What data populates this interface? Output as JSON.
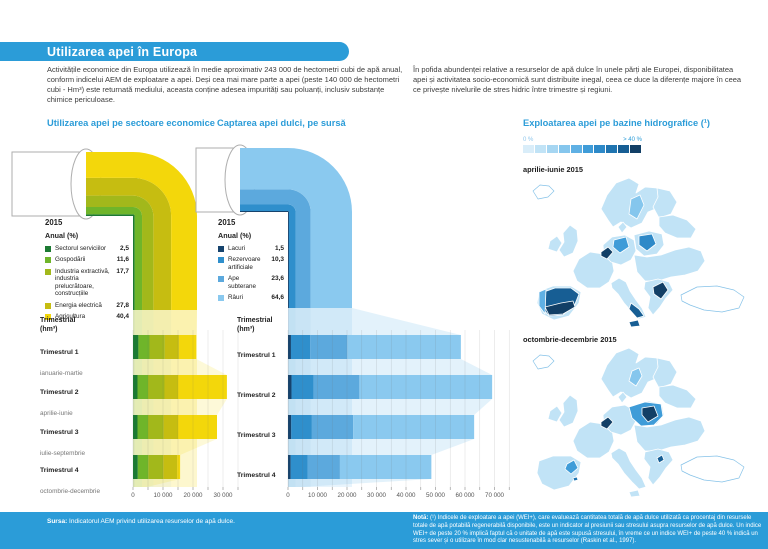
{
  "page": {
    "title": "Utilizarea apei în Europa",
    "intro_left": "Activitățile economice din Europa utilizează în medie aproximativ 243 000 de hectometri cubi de apă anual, conform indicelui AEM de exploatare a apei. Deși cea mai mare parte a apei (peste 140 000 de hectometri cubi - Hm³) este returnată mediului, aceasta conține adesea impurități sau poluanți, inclusiv substanțe chimice periculoase.",
    "intro_right": "În pofida abundenței relative a resurselor de apă dulce în unele părți ale Europei, disponibilitatea apei și activitatea socio-economică sunt distribuite inegal, ceea ce duce la diferențe majore în ceea ce privește nivelurile de stres hidric între trimestre și regiuni."
  },
  "chart_data": [
    {
      "id": "water-use-by-sector",
      "type": "flow-stacked-bar",
      "title": "Utilizarea apei pe sectoare economice",
      "year_label": "2015",
      "annual_label": "Anual (%)",
      "quarterly_label": "Trimestrial",
      "quarterly_unit": "(hm³)",
      "series": [
        {
          "name": "Sectorul serviciilor",
          "annual_pct": "2,5",
          "color": "#1c7a33"
        },
        {
          "name": "Gospodării",
          "annual_pct": "11,6",
          "color": "#6fb52a"
        },
        {
          "name": "Industria extractivă, industria prelucrătoare, construcțiile",
          "annual_pct": "17,7",
          "color": "#a2b81b"
        },
        {
          "name": "Energia electrică",
          "annual_pct": "27,8",
          "color": "#c6bd11"
        },
        {
          "name": "Agricultura",
          "annual_pct": "40,4",
          "color": "#f3d70b"
        }
      ],
      "quarters": [
        {
          "label": "Trimestrul 1",
          "sub": "ianuarie-martie",
          "values": [
            1800,
            3700,
            5100,
            4700,
            5800
          ]
        },
        {
          "label": "Trimestrul 2",
          "sub": "aprilie-iunie",
          "values": [
            1500,
            3500,
            5500,
            4500,
            16300
          ]
        },
        {
          "label": "Trimestrul 3",
          "sub": "iulie-septembrie",
          "values": [
            1500,
            3500,
            5200,
            4800,
            13000
          ]
        },
        {
          "label": "Trimestrul 4",
          "sub": "octombrie-decembrie",
          "values": [
            1600,
            3500,
            5000,
            4600,
            1000
          ]
        }
      ],
      "axis": {
        "max": 35000,
        "minor_step": 5000,
        "label_step": 10000,
        "tick_labels": [
          "0",
          "10 000",
          "20 000",
          "30 000"
        ]
      }
    },
    {
      "id": "freshwater-abstraction-by-source",
      "type": "flow-stacked-bar",
      "title": "Captarea apei dulci, pe sursă",
      "year_label": "2015",
      "annual_label": "Anual (%)",
      "quarterly_label": "Trimestrial",
      "quarterly_unit": "(hm³)",
      "series": [
        {
          "name": "Lacuri",
          "annual_pct": "1,5",
          "color": "#16436d"
        },
        {
          "name": "Rezervoare artificiale",
          "annual_pct": "10,3",
          "color": "#2f8fcc"
        },
        {
          "name": "Ape subterane",
          "annual_pct": "23,6",
          "color": "#5ca9dd"
        },
        {
          "name": "Râuri",
          "annual_pct": "64,6",
          "color": "#8ac9ef"
        }
      ],
      "quarters": [
        {
          "label": "Trimestrul 1",
          "sub": "",
          "values": [
            1000,
            6500,
            12600,
            38500
          ]
        },
        {
          "label": "Trimestrul 2",
          "sub": "",
          "values": [
            1200,
            7500,
            15500,
            45000
          ]
        },
        {
          "label": "Trimestrul 3",
          "sub": "",
          "values": [
            1100,
            7000,
            14000,
            41000
          ]
        },
        {
          "label": "Trimestrul 4",
          "sub": "",
          "values": [
            900,
            5700,
            11000,
            31000
          ]
        }
      ],
      "axis": {
        "max": 75000,
        "minor_step": 5000,
        "label_step": 10000,
        "tick_labels": [
          "0",
          "10 000",
          "20 000",
          "30 000",
          "40 000",
          "50 000",
          "60 000",
          "70 000"
        ]
      }
    }
  ],
  "maps": {
    "title": "Exploatarea apei pe bazine hidrografice (¹)",
    "scale": {
      "min_label": "0 %",
      "max_label": "> 40 %",
      "colors": [
        "#d9edf9",
        "#c1e3f6",
        "#a6d6f2",
        "#85c6ed",
        "#5fb0e4",
        "#3f9cd8",
        "#2d89c8",
        "#1f74b0",
        "#175e94",
        "#123f66"
      ]
    },
    "periods": [
      {
        "label": "aprilie-iunie 2015"
      },
      {
        "label": "octombrie-decembrie 2015"
      }
    ]
  },
  "footer": {
    "source_label": "Sursa:",
    "source_text": "Indicatorul AEM privind utilizarea resurselor de apă dulce.",
    "note_label": "Notă:",
    "note_text": "(¹) Indicele de exploatare a apei (WEI+), care evaluează cantitatea totală de apă dulce utilizată ca procentaj din resursele totale de apă potabilă regenerabilă disponibile, este un indicator al presiunii sau stresului asupra resurselor de apă dulce. Un indice WEI+ de peste 20 % implică faptul că o unitate de apă este supusă stresului, în vreme ce un indice WEI+ de peste 40 % indică un stres sever și o utilizare în mod clar nesustenabilă a resurselor (Raskin et al., 1997)."
  }
}
